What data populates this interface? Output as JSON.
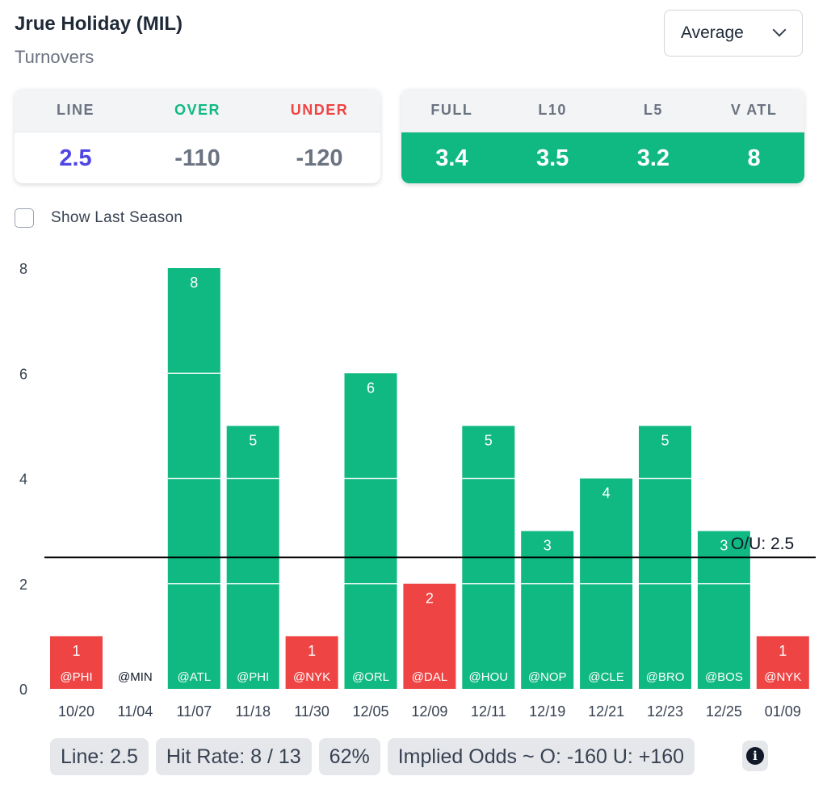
{
  "header": {
    "title": "Jrue Holiday (MIL)",
    "subtitle": "Turnovers"
  },
  "select": {
    "value": "Average"
  },
  "line_card": {
    "headers": [
      "LINE",
      "OVER",
      "UNDER"
    ],
    "values": [
      "2.5",
      "-110",
      "-120"
    ],
    "colors": {
      "line_value": "#4f46e5",
      "over_head": "#10b981",
      "under_head": "#ef4444"
    }
  },
  "avg_card": {
    "headers": [
      "FULL",
      "L10",
      "L5",
      "V ATL"
    ],
    "values": [
      "3.4",
      "3.5",
      "3.2",
      "8"
    ]
  },
  "toggle": {
    "label": "Show Last Season",
    "checked": false
  },
  "chart_data": {
    "type": "bar",
    "categories": [
      "10/20",
      "11/04",
      "11/07",
      "11/18",
      "11/30",
      "12/05",
      "12/09",
      "12/11",
      "12/19",
      "12/21",
      "12/23",
      "12/25",
      "01/09"
    ],
    "opponents": [
      "@PHI",
      "@MIN",
      "@ATL",
      "@PHI",
      "@NYK",
      "@ORL",
      "@DAL",
      "@HOU",
      "@NOP",
      "@CLE",
      "@BRO",
      "@BOS",
      "@NYK"
    ],
    "values": [
      1,
      0,
      8,
      5,
      1,
      6,
      2,
      5,
      3,
      4,
      5,
      3,
      1
    ],
    "ylim": [
      0,
      8
    ],
    "yticks": [
      0,
      2,
      4,
      6,
      8
    ],
    "threshold": {
      "value": 2.5,
      "label": "O/U: 2.5"
    },
    "colors": {
      "over": "#10b981",
      "under": "#ef4444"
    }
  },
  "footer": {
    "line": "Line: 2.5",
    "hit_rate": "Hit Rate: 8 / 13",
    "percent": "62%",
    "implied_odds": "Implied Odds ~ O: -160 U: +160"
  },
  "icons": {
    "info": "info-icon",
    "dropdown": "chevron-down-icon"
  }
}
